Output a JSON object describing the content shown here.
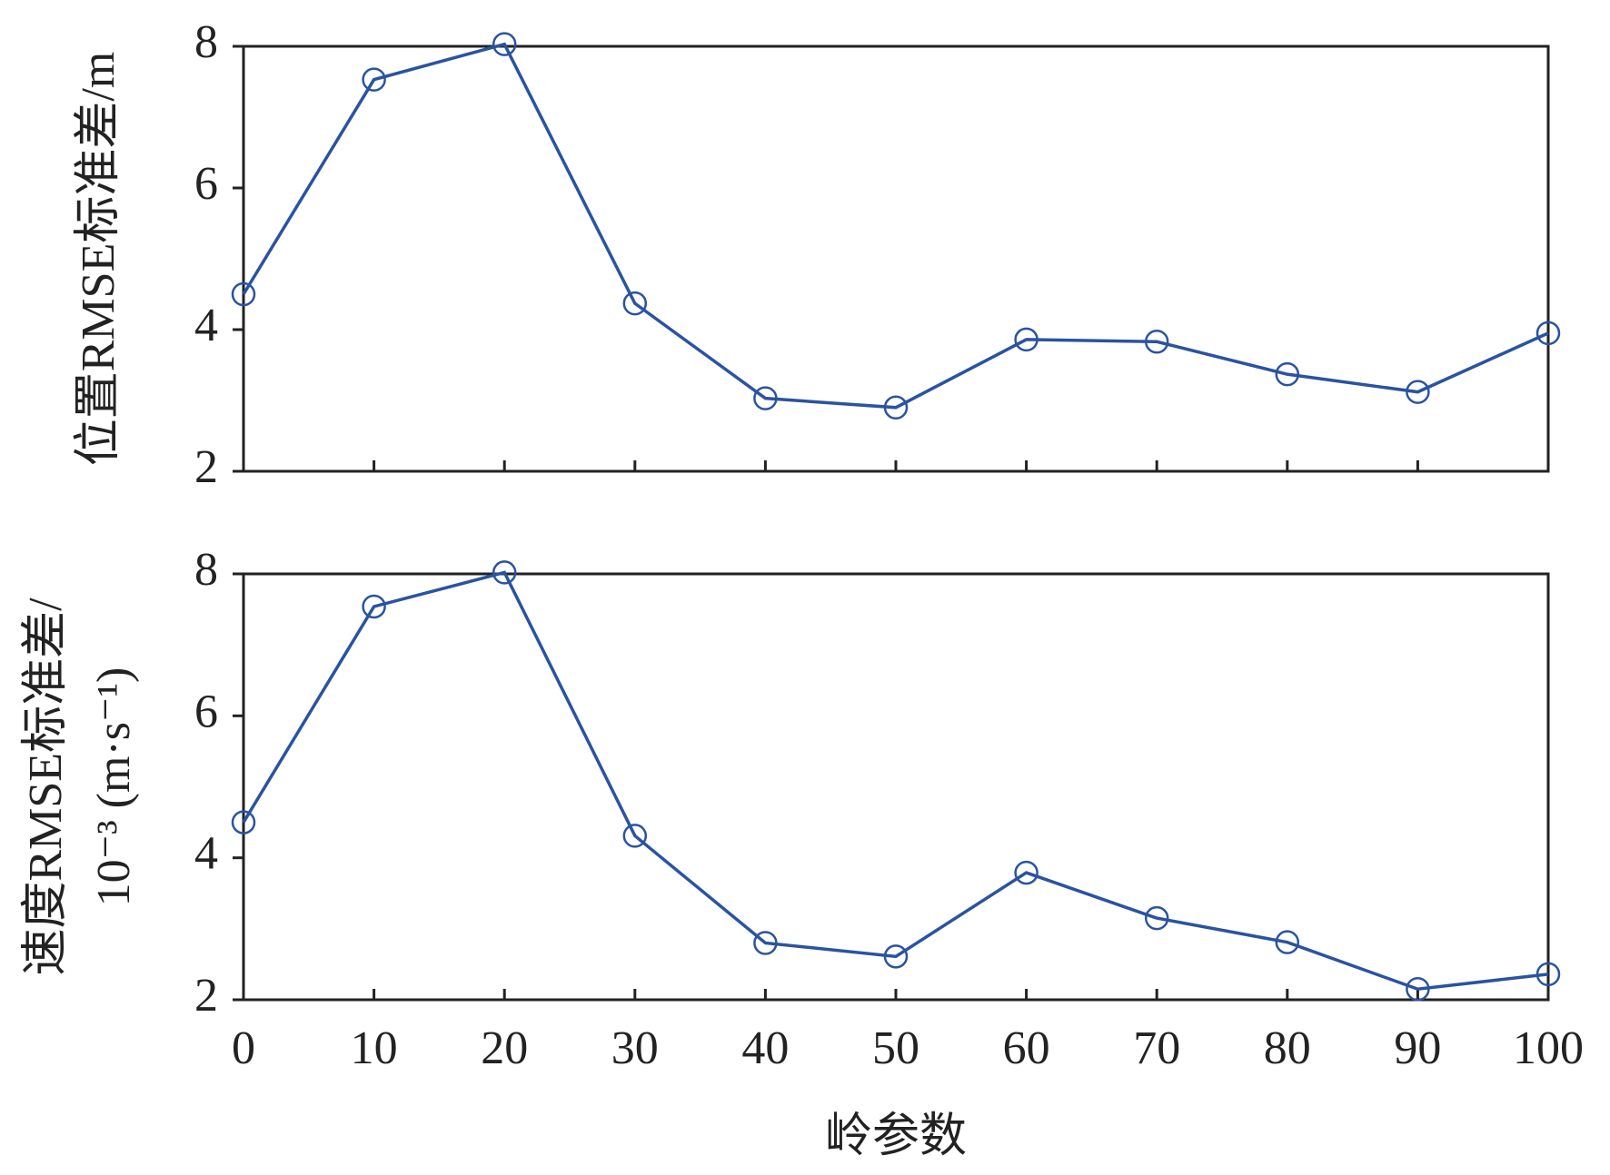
{
  "chart_data": [
    {
      "type": "line",
      "ylabel": [
        "位置RMSE标准差/m"
      ],
      "x": [
        0,
        10,
        20,
        30,
        40,
        50,
        60,
        70,
        80,
        90,
        100
      ],
      "series": [
        {
          "color": "#2a53a0",
          "values": [
            4.5,
            7.53,
            8.03,
            4.37,
            3.03,
            2.9,
            3.86,
            3.83,
            3.37,
            3.12,
            3.95
          ]
        }
      ],
      "xlim": [
        0,
        100
      ],
      "xticks": [
        0,
        10,
        20,
        30,
        40,
        50,
        60,
        70,
        80,
        90,
        100
      ],
      "show_xtick_labels": false,
      "ylim": [
        2,
        8
      ],
      "yticks": [
        2,
        4,
        6,
        8
      ]
    },
    {
      "type": "line",
      "xlabel": "岭参数",
      "ylabel": [
        "速度RMSE标准差/",
        "10⁻³ (m·s⁻¹)"
      ],
      "x": [
        0,
        10,
        20,
        30,
        40,
        50,
        60,
        70,
        80,
        90,
        100
      ],
      "series": [
        {
          "color": "#2a53a0",
          "values": [
            4.5,
            7.54,
            8.02,
            4.31,
            2.8,
            2.61,
            3.79,
            3.15,
            2.81,
            2.15,
            2.36
          ]
        }
      ],
      "xlim": [
        0,
        100
      ],
      "xticks": [
        0,
        10,
        20,
        30,
        40,
        50,
        60,
        70,
        80,
        90,
        100
      ],
      "show_xtick_labels": true,
      "ylim": [
        2,
        8
      ],
      "yticks": [
        2,
        4,
        6,
        8
      ]
    }
  ]
}
